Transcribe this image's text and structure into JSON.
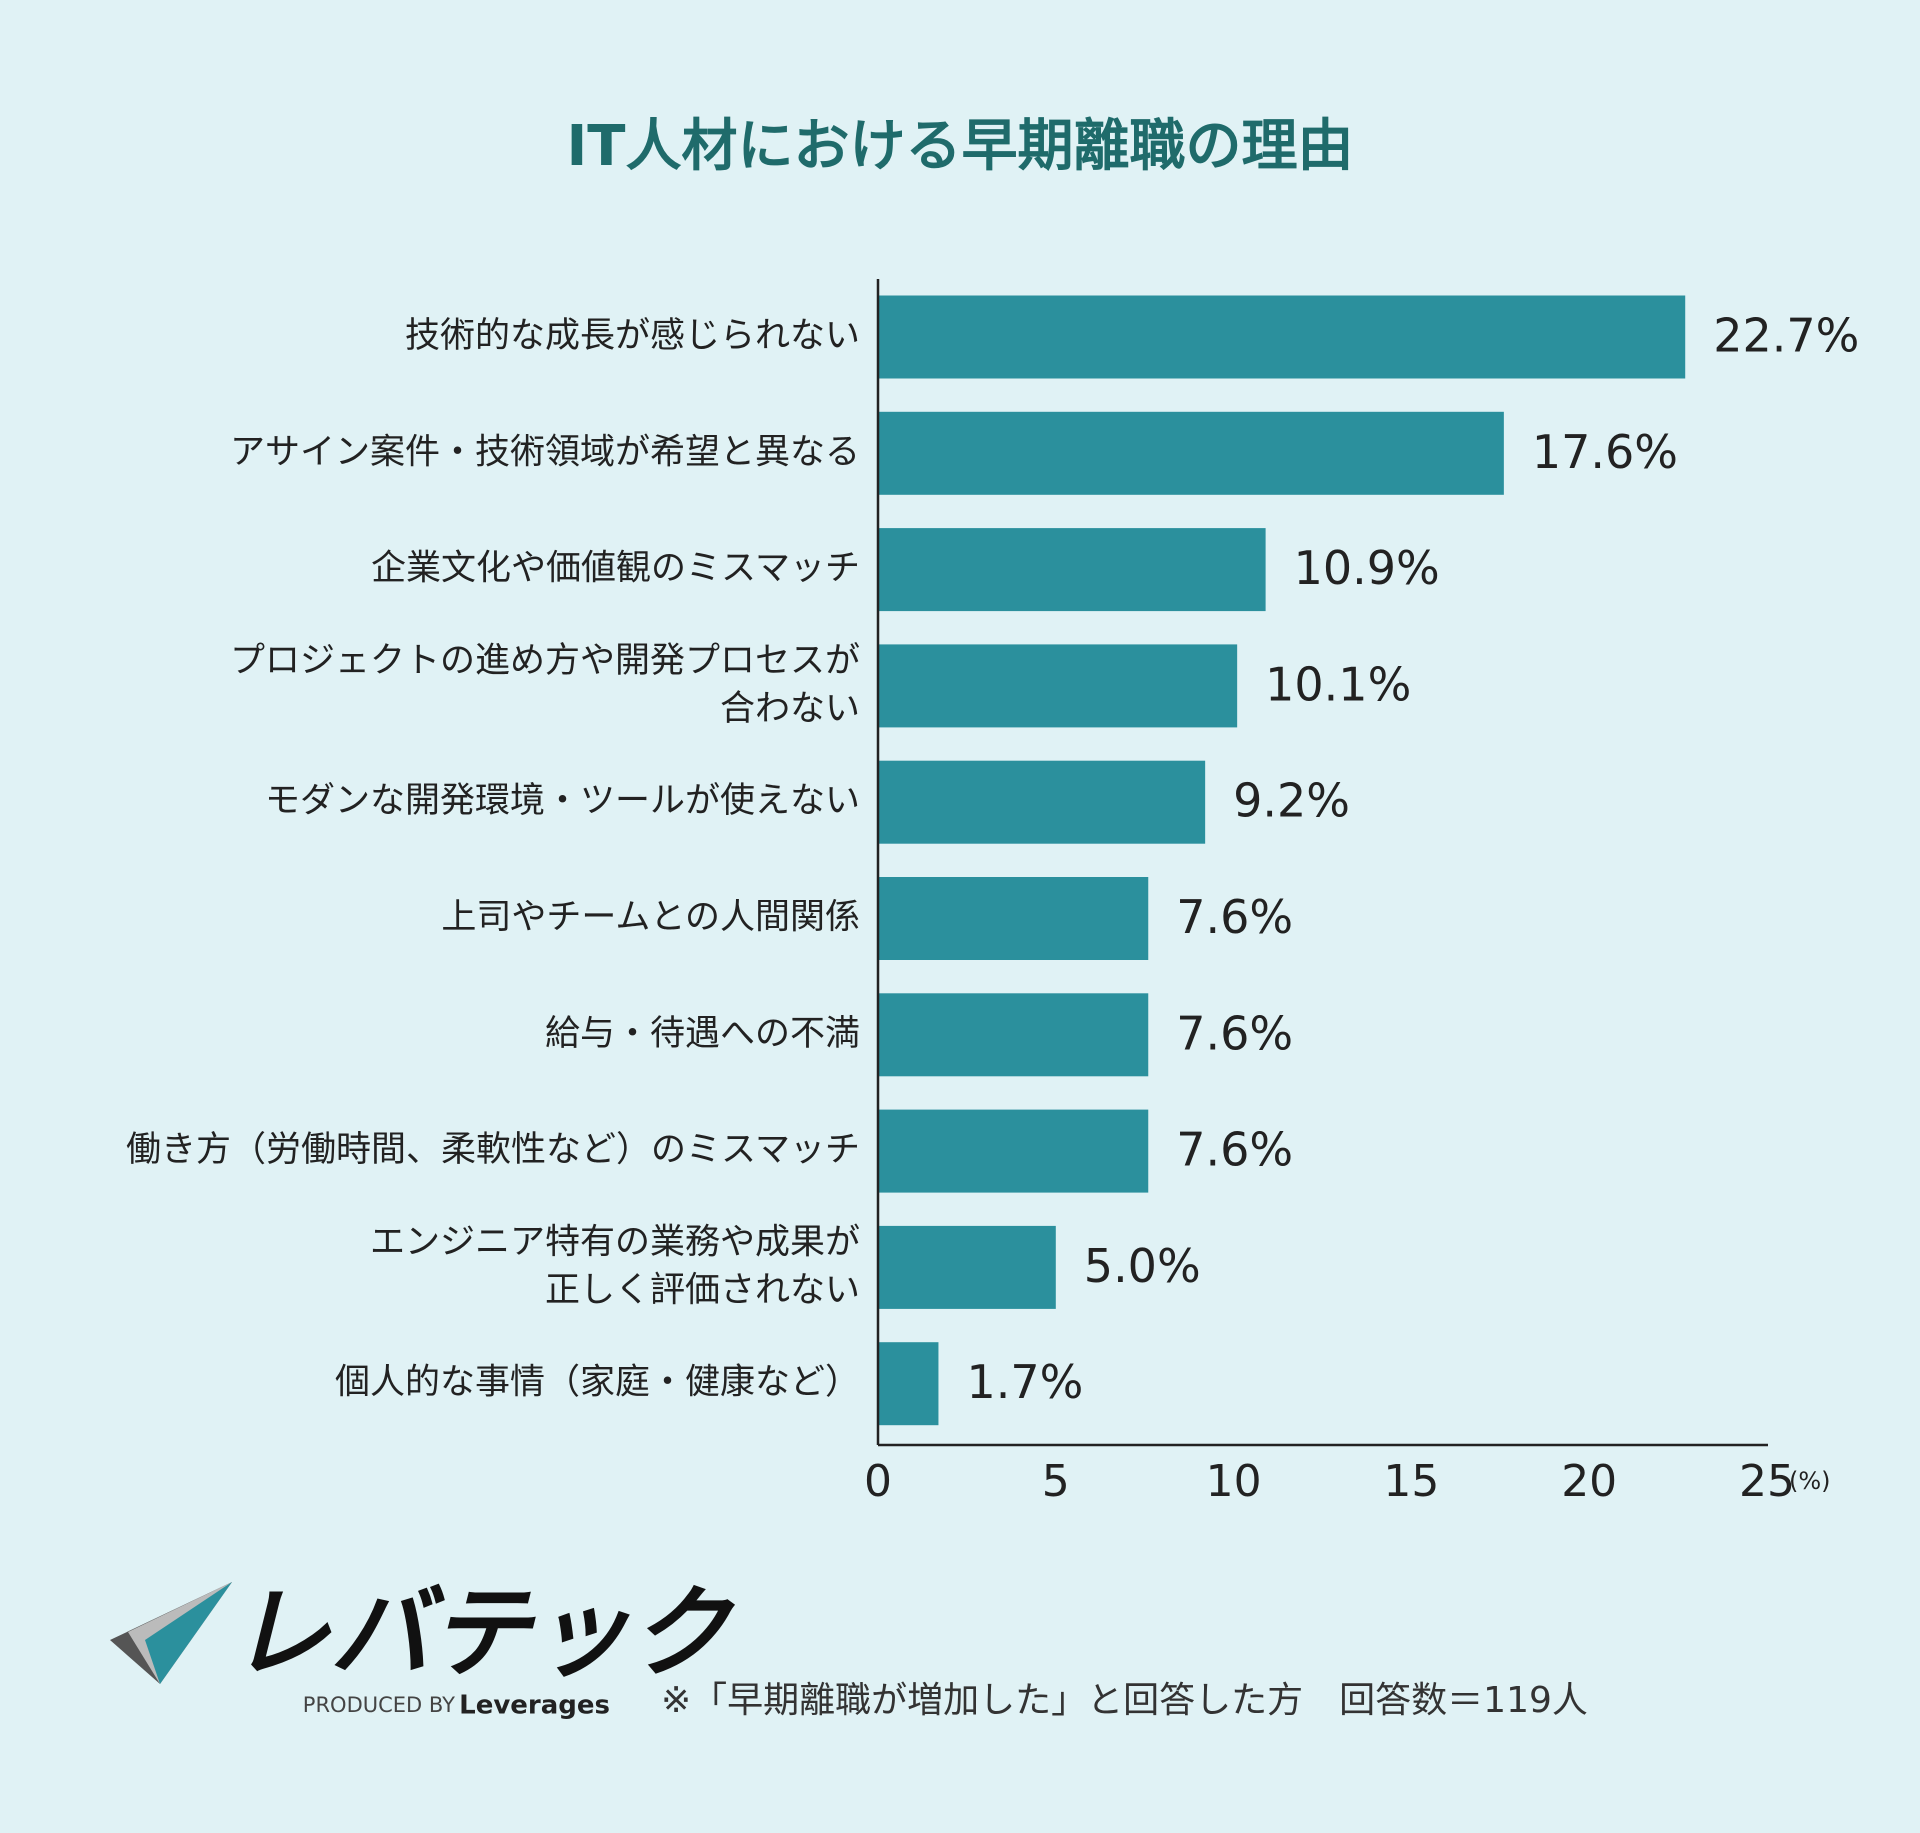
{
  "chart_data": {
    "type": "barh",
    "title": "IT人材における早期離職の理由",
    "categories": [
      [
        "技術的な成長が感じられない"
      ],
      [
        "アサイン案件・技術領域が希望と異なる"
      ],
      [
        "企業文化や価値観のミスマッチ"
      ],
      [
        "プロジェクトの進め方や開発プロセスが",
        "合わない"
      ],
      [
        "モダンな開発環境・ツールが使えない"
      ],
      [
        "上司やチームとの人間関係"
      ],
      [
        "給与・待遇への不満"
      ],
      [
        "働き方（労働時間、柔軟性など）のミスマッチ"
      ],
      [
        "エンジニア特有の業務や成果が",
        "正しく評価されない"
      ],
      [
        "個人的な事情（家庭・健康など）"
      ]
    ],
    "values": [
      22.7,
      17.6,
      10.9,
      10.1,
      9.2,
      7.6,
      7.6,
      7.6,
      5.0,
      1.7
    ],
    "value_labels": [
      "22.7%",
      "17.6%",
      "10.9%",
      "10.1%",
      "9.2%",
      "7.6%",
      "7.6%",
      "7.6%",
      "5.0%",
      "1.7%"
    ],
    "color": "#2b909d",
    "xlim": [
      0,
      25
    ],
    "xticks": [
      0,
      5,
      10,
      15,
      20,
      25
    ],
    "x_unit": "(%)"
  },
  "footer": {
    "logo": "レバテック",
    "produced_by": "PRODUCED BY",
    "brand": "Leverages",
    "note": "※「早期離職が増加した」と回答した方　回答数＝119人"
  }
}
